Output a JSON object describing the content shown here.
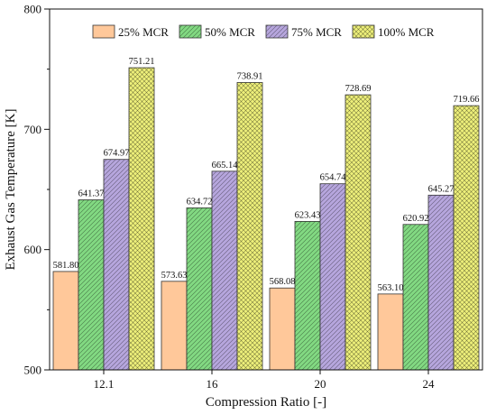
{
  "chart_data": {
    "type": "bar",
    "title": "",
    "xlabel": "Compression Ratio [-]",
    "ylabel": "Exhaust Gas Temperature [K]",
    "ylim": [
      500,
      800
    ],
    "yticks": [
      500,
      600,
      700,
      800
    ],
    "categories": [
      "12.1",
      "16",
      "20",
      "24"
    ],
    "legend_position": "top-center",
    "grid": false,
    "series": [
      {
        "name": "25% MCR",
        "values": [
          581.8,
          573.63,
          568.08,
          563.1
        ],
        "labels": [
          "581.80",
          "573.63",
          "568.08",
          "563.10"
        ],
        "color": "#ffc89a",
        "pattern": "none"
      },
      {
        "name": "50% MCR",
        "values": [
          641.37,
          634.72,
          623.43,
          620.92
        ],
        "labels": [
          "641.37",
          "634.72",
          "623.43",
          "620.92"
        ],
        "color": "#82d982",
        "pattern": "diagonal"
      },
      {
        "name": "75% MCR",
        "values": [
          674.97,
          665.14,
          654.74,
          645.27
        ],
        "labels": [
          "674.97",
          "665.14",
          "654.74",
          "645.27"
        ],
        "color": "#b6a6dd",
        "pattern": "diagonal"
      },
      {
        "name": "100% MCR",
        "values": [
          751.21,
          738.91,
          728.69,
          719.66
        ],
        "labels": [
          "751.21",
          "738.91",
          "728.69",
          "719.66"
        ],
        "color": "#eef07a",
        "pattern": "crosshatch"
      }
    ]
  }
}
